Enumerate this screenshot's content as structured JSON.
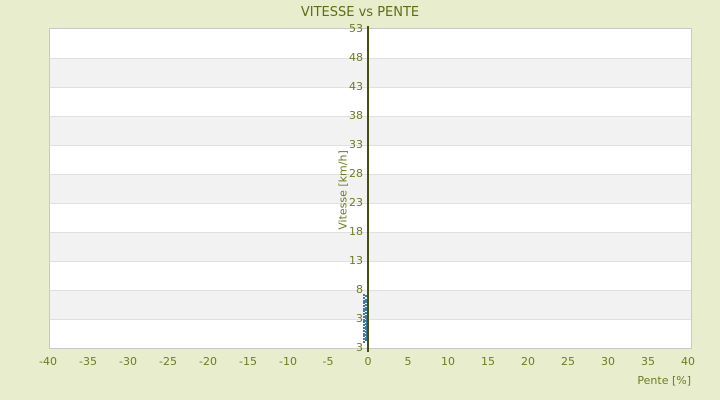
{
  "title": "VITESSE vs PENTE",
  "colors": {
    "page_background": "#e8edcd",
    "band_light": "#ffffff",
    "band_dark": "#f2f2f2",
    "gridline": "#e0e0e0",
    "plot_border": "#c9c9c9",
    "axis_line": "#46500e",
    "text_olive": "#6d7c20",
    "title_olive": "#5e6d14",
    "marker_blue": "#3d7ca8"
  },
  "chart_data": {
    "type": "scatter",
    "title": "VITESSE vs PENTE",
    "xlabel": "Pente [%]",
    "ylabel": "Vitesse [km/h]",
    "xlim": [
      -40,
      40
    ],
    "x_ticks": [
      -40,
      -35,
      -30,
      -25,
      -20,
      -15,
      -10,
      -5,
      0,
      5,
      10,
      15,
      20,
      25,
      30,
      35,
      40
    ],
    "y_ticks": [
      53,
      48,
      43,
      38,
      33,
      28,
      23,
      18,
      13,
      8,
      3
    ],
    "y_edge_label": "3",
    "y_tick_step": 5,
    "grid": "horizontal-bands-alternating",
    "legend": "none",
    "description": "Dense cluster of small blue square markers along the vertical axis at Pente = 0, Vitesse roughly 0 to 7 km/h",
    "series": [
      {
        "name": "vitesse-vs-pente-points",
        "marker": "square",
        "color": "#3d7ca8",
        "points": [
          [
            -0.5,
            7.1
          ],
          [
            -0.5,
            6.6
          ],
          [
            -0.5,
            6.1
          ],
          [
            -0.5,
            5.7
          ],
          [
            -0.5,
            5.2
          ],
          [
            -0.5,
            4.7
          ],
          [
            -0.5,
            4.3
          ],
          [
            -0.5,
            3.8
          ],
          [
            -0.5,
            3.3
          ],
          [
            -0.5,
            2.9
          ],
          [
            -0.5,
            2.4
          ],
          [
            -0.5,
            1.9
          ],
          [
            -0.5,
            1.5
          ],
          [
            -0.5,
            1.0
          ],
          [
            -0.5,
            0.5
          ],
          [
            -0.5,
            0.0
          ],
          [
            -0.5,
            -0.4
          ],
          [
            -0.5,
            -0.9
          ],
          [
            -0.25,
            6.9
          ],
          [
            -0.25,
            6.3
          ],
          [
            -0.25,
            5.9
          ],
          [
            -0.25,
            5.4
          ],
          [
            -0.25,
            4.9
          ],
          [
            -0.25,
            4.5
          ],
          [
            -0.25,
            4.0
          ],
          [
            -0.25,
            3.5
          ],
          [
            -0.25,
            3.1
          ],
          [
            -0.25,
            2.6
          ],
          [
            -0.25,
            2.1
          ],
          [
            -0.25,
            1.7
          ],
          [
            -0.25,
            1.2
          ],
          [
            -0.25,
            0.7
          ],
          [
            -0.25,
            0.3
          ],
          [
            -0.25,
            -0.2
          ],
          [
            -0.25,
            -0.7
          ],
          [
            -0.1,
            3.0
          ],
          [
            -0.1,
            2.5
          ],
          [
            -0.1,
            2.0
          ],
          [
            -0.1,
            1.4
          ],
          [
            -0.1,
            0.9
          ],
          [
            -0.1,
            0.4
          ],
          [
            -0.1,
            -0.1
          ],
          [
            -0.1,
            -0.6
          ]
        ]
      }
    ]
  }
}
